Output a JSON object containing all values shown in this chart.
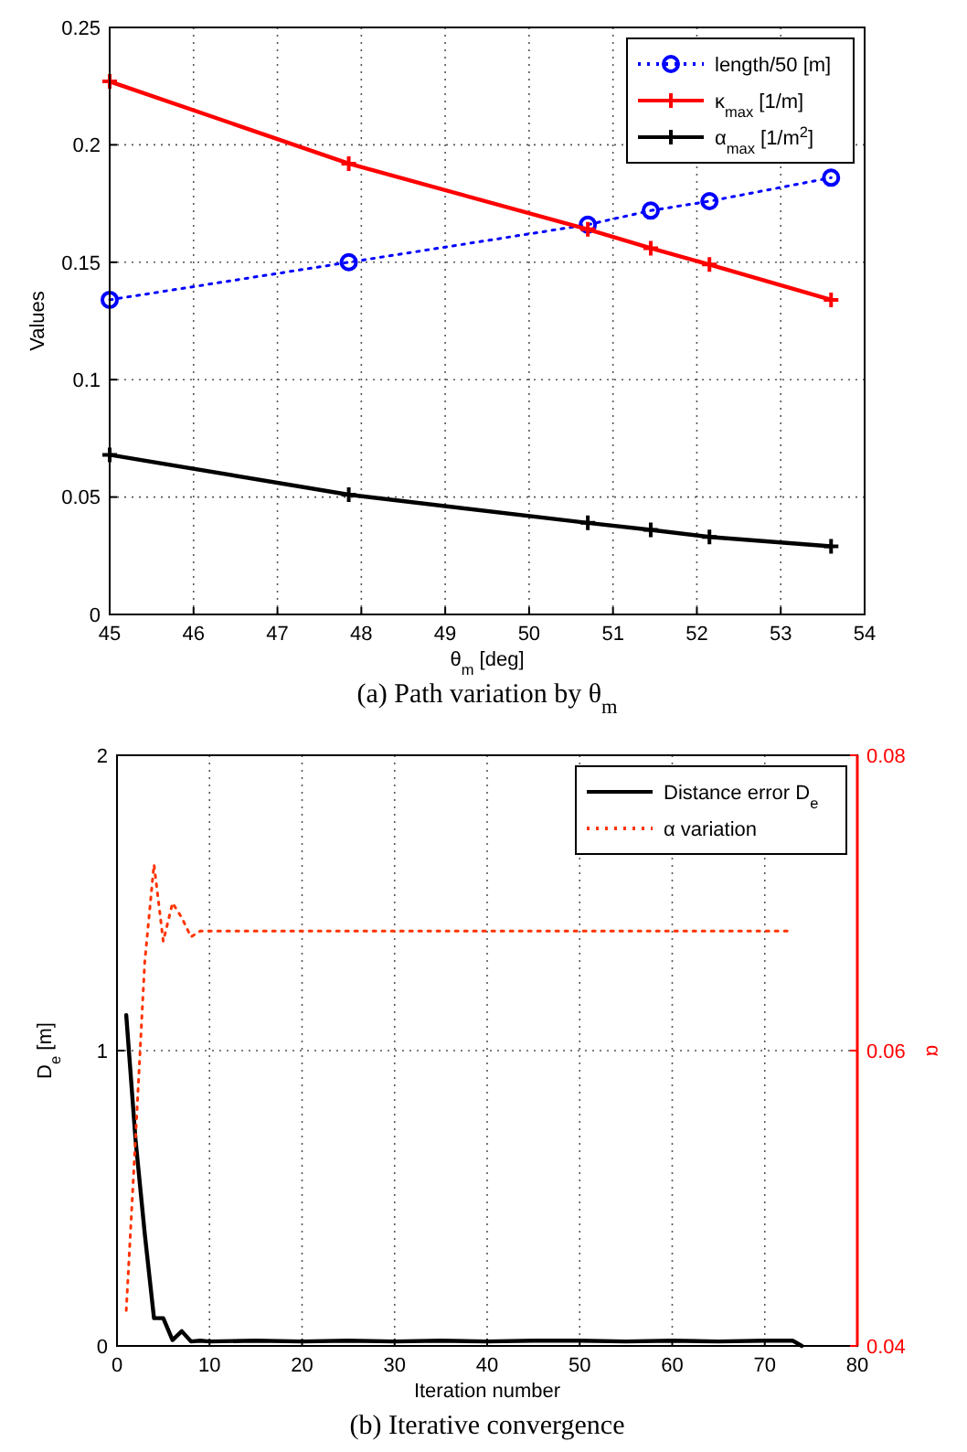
{
  "chart_data": [
    {
      "type": "line",
      "xlabel": "θ$_{m}$ [deg]",
      "ylabel": "Values",
      "annotations": [
        "(a) Path variation by θ$_{m}$"
      ],
      "x": [
        45,
        47.85,
        50.7,
        51.45,
        52.15,
        53.6
      ],
      "series": [
        {
          "name": "length/50 [m]",
          "color": "#0000ff",
          "values": [
            0.134,
            0.15,
            0.166,
            0.172,
            0.176,
            0.186
          ],
          "marker": "circle",
          "line_style": "dotted"
        },
        {
          "name": "κ$_{max}$ [1/m]",
          "color": "#ff0000",
          "values": [
            0.227,
            0.192,
            0.164,
            0.156,
            0.149,
            0.134
          ],
          "marker": "cross",
          "line_style": "solid"
        },
        {
          "name": "α$_{max}$ [1/m$^{2}$]",
          "color": "#000000",
          "values": [
            0.068,
            0.051,
            0.039,
            0.036,
            0.033,
            0.029
          ],
          "marker": "cross",
          "line_style": "solid"
        }
      ],
      "xlim": [
        45,
        54
      ],
      "xticks": [
        45,
        46,
        47,
        48,
        49,
        50,
        51,
        52,
        53,
        54
      ],
      "ylim": [
        0,
        0.25
      ],
      "yticks": [
        0,
        0.05,
        0.1,
        0.15,
        0.2,
        0.25
      ],
      "grid": true,
      "legend": "top right"
    },
    {
      "type": "line",
      "xlabel": "Iteration number",
      "ylabel": "D$_{e}$ [m]",
      "y2label": "α",
      "annotations": [
        "(b) Iterative convergence"
      ],
      "series": [
        {
          "name": "Distance error D$_{e}$",
          "color": "#000000",
          "line_style": "solid",
          "x": [
            1,
            2,
            3,
            4,
            5,
            6,
            7,
            8,
            9,
            10,
            15,
            20,
            25,
            30,
            35,
            40,
            45,
            50,
            55,
            60,
            65,
            70,
            73,
            74
          ],
          "values": [
            1.12,
            0.7,
            0.38,
            0.094,
            0.094,
            0.02,
            0.05,
            0.015,
            0.018,
            0.015,
            0.018,
            0.015,
            0.018,
            0.015,
            0.018,
            0.015,
            0.018,
            0.018,
            0.015,
            0.018,
            0.015,
            0.018,
            0.018,
            0
          ]
        },
        {
          "name": "α variation",
          "color": "#ff3300",
          "axis": "y2",
          "line_style": "dotted",
          "x": [
            1,
            2,
            3,
            4,
            5,
            6,
            7,
            8,
            9,
            73
          ],
          "values": [
            0.0424,
            0.054,
            0.066,
            0.0726,
            0.0674,
            0.07,
            0.069,
            0.0677,
            0.0681,
            0.0681
          ]
        }
      ],
      "xlim": [
        0,
        80
      ],
      "xticks": [
        0,
        10,
        20,
        30,
        40,
        50,
        60,
        70,
        80
      ],
      "ylim": [
        0,
        2
      ],
      "yticks": [
        0,
        1,
        2
      ],
      "y2lim": [
        0.04,
        0.08
      ],
      "y2ticks": [
        0.04,
        0.06,
        0.08
      ],
      "grid": true,
      "legend": "top right"
    }
  ]
}
